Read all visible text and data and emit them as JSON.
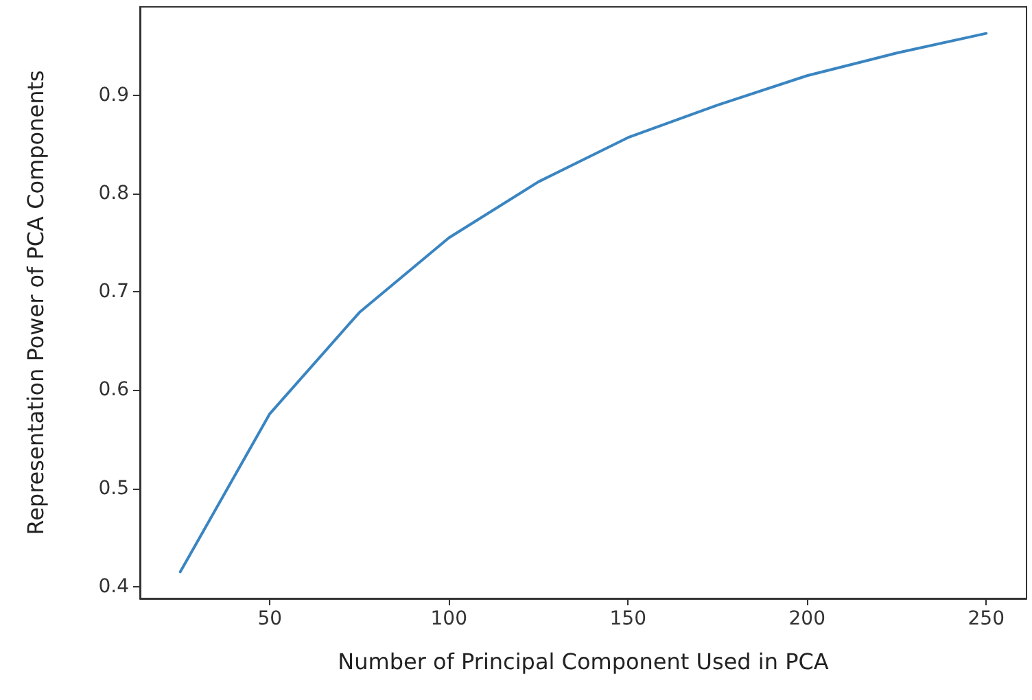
{
  "chart_data": {
    "type": "line",
    "xlabel": "Number of Principal Component Used in PCA",
    "ylabel": "Representation Power of PCA Components",
    "x": [
      25,
      50,
      75,
      100,
      125,
      150,
      175,
      200,
      225,
      250
    ],
    "series": [
      {
        "color": "#3a85c1",
        "values": [
          0.415,
          0.576,
          0.679,
          0.755,
          0.812,
          0.857,
          0.89,
          0.92,
          0.943,
          0.963
        ]
      }
    ],
    "xlim": [
      13.75,
      261.25
    ],
    "xticks": [
      50,
      100,
      150,
      200,
      250
    ],
    "ylim": [
      0.388,
      0.99
    ],
    "yticks": [
      0.4,
      0.5,
      0.6,
      0.7,
      0.8,
      0.9
    ],
    "grid": false,
    "marker": "none",
    "line_style": "solid"
  }
}
